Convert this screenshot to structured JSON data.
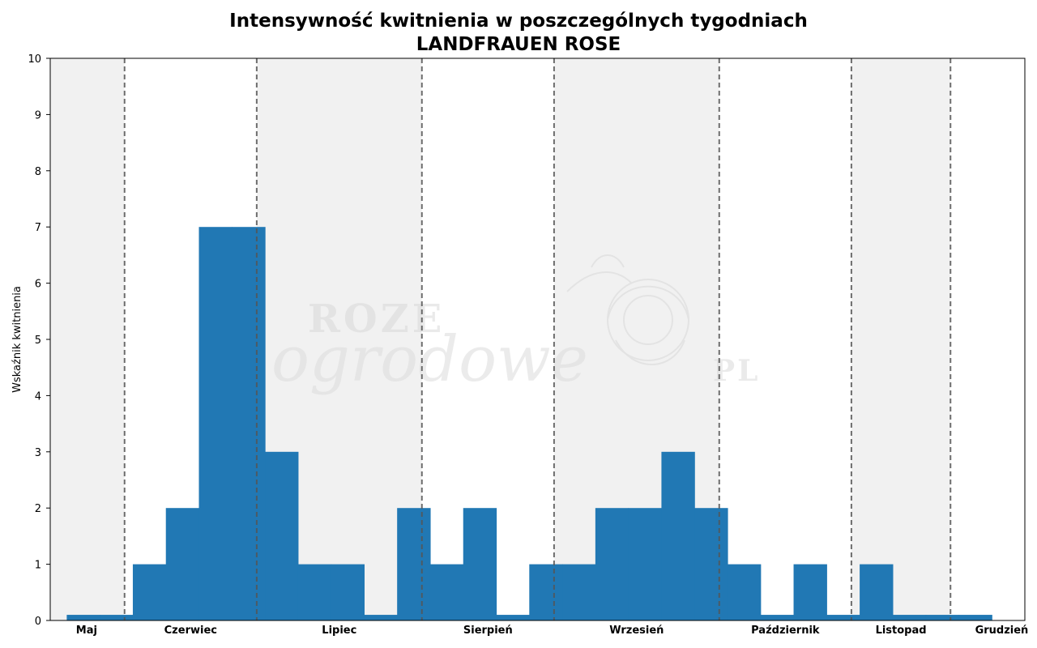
{
  "chart_data": {
    "type": "bar",
    "title": "Intensywność kwitnienia w poszczególnych tygodniach",
    "subtitle": "LANDFRAUEN ROSE",
    "xlabel": "",
    "ylabel": "Wskaźnik kwitnienia",
    "ylim": [
      0,
      10
    ],
    "yticks": [
      0,
      1,
      2,
      3,
      4,
      5,
      6,
      7,
      8,
      9,
      10
    ],
    "week_range": [
      0,
      29.5
    ],
    "weeks": [
      1,
      2,
      3,
      4,
      5,
      6,
      7,
      8,
      9,
      10,
      11,
      12,
      13,
      14,
      15,
      16,
      17,
      18,
      19,
      20,
      21,
      22,
      23,
      24,
      25,
      26,
      27,
      28,
      29
    ],
    "values": [
      0.1,
      0.1,
      1,
      2,
      7,
      7,
      3,
      1,
      1,
      0.1,
      2,
      1,
      2,
      0.1,
      1,
      1,
      2,
      2,
      3,
      2,
      1,
      0.1,
      1,
      0.1,
      1,
      0.1,
      0.1,
      0.1,
      0
    ],
    "month_boundaries": [
      2.25,
      6.25,
      11.25,
      15.25,
      20.25,
      24.25,
      27.25
    ],
    "months": [
      {
        "label": "Maj",
        "center": 1.1
      },
      {
        "label": "Czerwiec",
        "center": 4.25
      },
      {
        "label": "Lipiec",
        "center": 8.75
      },
      {
        "label": "Sierpień",
        "center": 13.25
      },
      {
        "label": "Wrzesień",
        "center": 17.75
      },
      {
        "label": "Październik",
        "center": 22.25
      },
      {
        "label": "Listopad",
        "center": 25.75
      },
      {
        "label": "Grudzień",
        "center": 28.8
      }
    ],
    "shaded_months": [
      "Maj",
      "Lipiec",
      "Wrzesień",
      "Listopad"
    ],
    "grid": false,
    "colors": {
      "bar": "#2178b4",
      "shade": "#f1f1f1",
      "divider": "#555555"
    }
  },
  "watermark": {
    "line1": "ROZE",
    "line2": "ogrodowe",
    "suffix": "PL"
  }
}
